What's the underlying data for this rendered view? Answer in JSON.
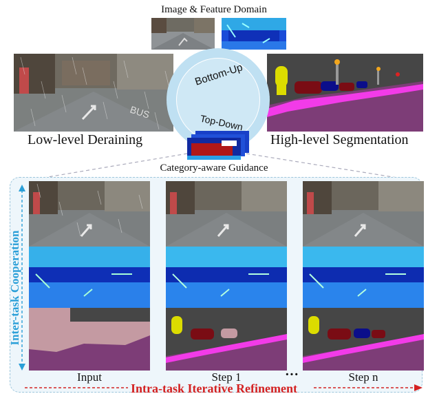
{
  "title_top": "Image & Feature Domain",
  "label_low": "Low-level Deraining",
  "label_high": "High-level Segmentation",
  "ring_top": "Bottom-Up",
  "ring_bottom": "Top-Down",
  "label_category": "Category-aware Guidance",
  "inter_task": "Inter-task Cooperation",
  "col_input": "Input",
  "col_step1": "Step 1",
  "col_stepn": "Step n",
  "dots": "···",
  "intra_task": "Intra-task Iterative Refinement",
  "colors": {
    "ring": "#bfe0f2",
    "arrow": "#2a9fd8",
    "red": "#d42222",
    "road": "#7d3d77",
    "sidewalk": "#f23be8",
    "sky": "#464646"
  }
}
